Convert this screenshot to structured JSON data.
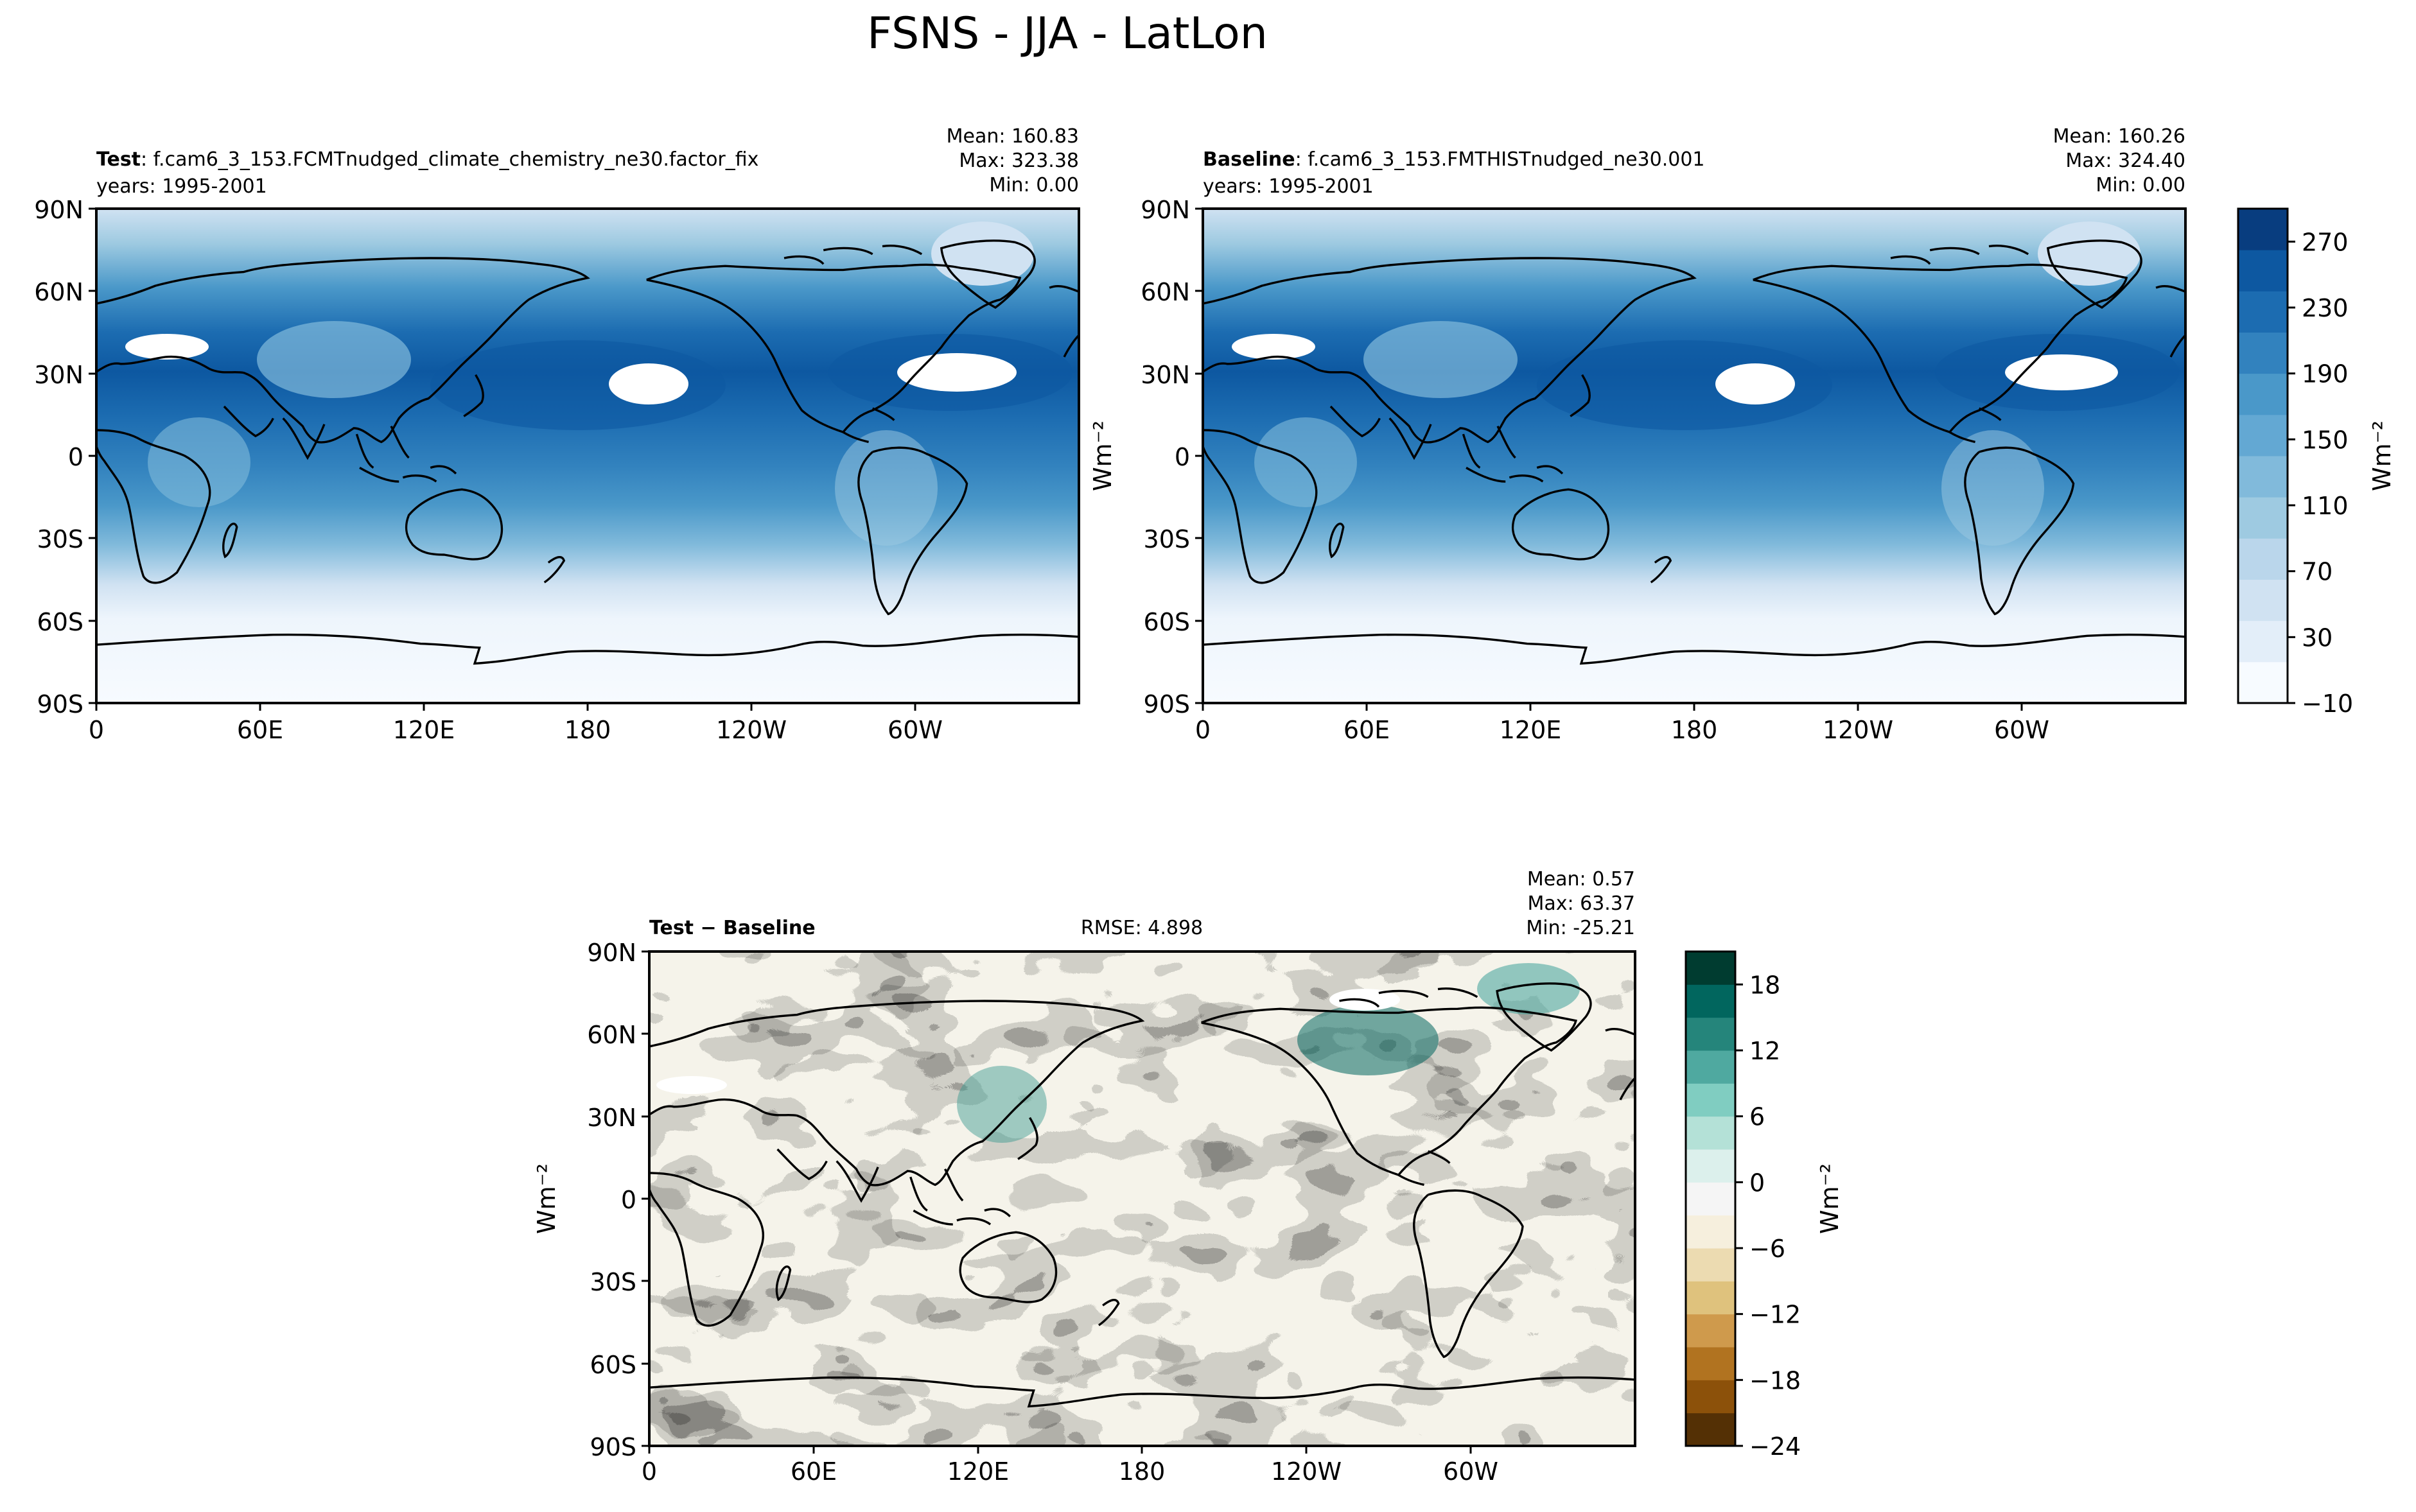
{
  "figure": {
    "title": "FSNS - JJA - LatLon"
  },
  "chart_data": [
    {
      "id": "test",
      "type": "heatmap",
      "label_bold": "Test",
      "label_text": ": f.cam6_3_153.FCMTnudged_climate_chemistry_ne30.factor_fix",
      "years": "years: 1995-2001",
      "stats": [
        "Mean: 160.83",
        "Max: 323.38",
        "Min:  0.00"
      ],
      "xlabel": "",
      "ylabel": "",
      "x_ticks": [
        "0",
        "60E",
        "120E",
        "180",
        "120W",
        "60W"
      ],
      "y_ticks": [
        "90N",
        "60N",
        "30N",
        "0",
        "30S",
        "60S",
        "90S"
      ],
      "xlim": [
        0,
        360
      ],
      "ylim": [
        -90,
        90
      ],
      "variable": "FSNS",
      "unit": "Wm⁻²"
    },
    {
      "id": "baseline",
      "type": "heatmap",
      "label_bold": "Baseline",
      "label_text": ": f.cam6_3_153.FMTHISTnudged_ne30.001",
      "years": "years: 1995-2001",
      "stats": [
        "Mean: 160.26",
        "Max: 324.40",
        "Min:  0.00"
      ],
      "xlabel": "",
      "ylabel": "Wm⁻²",
      "x_ticks": [
        "0",
        "60E",
        "120E",
        "180",
        "120W",
        "60W"
      ],
      "y_ticks": [
        "90N",
        "60N",
        "30N",
        "0",
        "30S",
        "60S",
        "90S"
      ],
      "xlim": [
        0,
        360
      ],
      "ylim": [
        -90,
        90
      ],
      "variable": "FSNS",
      "unit": "Wm⁻²"
    },
    {
      "id": "diff",
      "type": "heatmap",
      "label_bold": "Test − Baseline",
      "rmse": "RMSE: 4.898",
      "stats": [
        "Mean:  0.57",
        "Max: 63.37",
        "Min: -25.21"
      ],
      "xlabel": "",
      "ylabel": "Wm⁻²",
      "x_ticks": [
        "0",
        "60E",
        "120E",
        "180",
        "120W",
        "60W"
      ],
      "y_ticks": [
        "90N",
        "60N",
        "30N",
        "0",
        "30S",
        "60S",
        "90S"
      ],
      "xlim": [
        0,
        360
      ],
      "ylim": [
        -90,
        90
      ],
      "variable": "FSNS difference",
      "unit": "Wm⁻²"
    }
  ],
  "colorbars": {
    "main": {
      "label": "Wm⁻²",
      "tick_labels": [
        "−10",
        "30",
        "70",
        "110",
        "150",
        "190",
        "230",
        "270"
      ],
      "range": [
        -10,
        290
      ],
      "colors": [
        "#f7fbff",
        "#e3eef9",
        "#d0e2f2",
        "#bad6eb",
        "#9ecae1",
        "#81badb",
        "#63a8d3",
        "#4a98c9",
        "#3282be",
        "#1c6cb1",
        "#0d58a1",
        "#083d7f"
      ]
    },
    "diff": {
      "label": "Wm⁻²",
      "tick_labels": [
        "−24",
        "−18",
        "−12",
        "−6",
        "0",
        "6",
        "12",
        "18"
      ],
      "range": [
        -24,
        21
      ],
      "colors": [
        "#543005",
        "#8c510a",
        "#b17320",
        "#cf9a4c",
        "#dfc27d",
        "#ecdbb1",
        "#f6efdd",
        "#f5f5f5",
        "#dcf0ec",
        "#b4e1d7",
        "#80cdc1",
        "#4fa9a0",
        "#25857b",
        "#01665e",
        "#003c30"
      ]
    }
  }
}
